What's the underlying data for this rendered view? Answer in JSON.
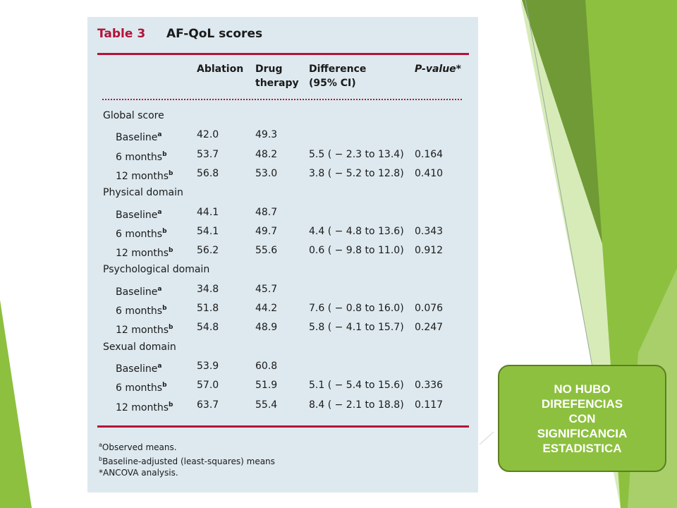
{
  "table": {
    "title": "Table 3",
    "subtitle": "AF-QoL scores",
    "headers": {
      "ablation": "Ablation",
      "drug_line1": "Drug",
      "drug_line2": "therapy",
      "difference_line1": "Difference",
      "difference_line2": "(95% CI)",
      "pvalue": "P-value*"
    },
    "sections": [
      {
        "label": "Global score",
        "rows": [
          {
            "label": "Baseline",
            "sup": "a",
            "ablation": "42.0",
            "drug": "49.3",
            "difference": "",
            "p": ""
          },
          {
            "label": "6 months",
            "sup": "b",
            "ablation": "53.7",
            "drug": "48.2",
            "difference": "5.5 ( − 2.3 to 13.4)",
            "p": "0.164"
          },
          {
            "label": "12 months",
            "sup": "b",
            "ablation": "56.8",
            "drug": "53.0",
            "difference": "3.8 ( − 5.2 to 12.8)",
            "p": "0.410"
          }
        ]
      },
      {
        "label": "Physical domain",
        "rows": [
          {
            "label": "Baseline",
            "sup": "a",
            "ablation": "44.1",
            "drug": "48.7",
            "difference": "",
            "p": ""
          },
          {
            "label": "6 months",
            "sup": "b",
            "ablation": "54.1",
            "drug": "49.7",
            "difference": "4.4 ( − 4.8 to 13.6)",
            "p": "0.343"
          },
          {
            "label": "12 months",
            "sup": "b",
            "ablation": "56.2",
            "drug": "55.6",
            "difference": "0.6 ( − 9.8 to 11.0)",
            "p": "0.912"
          }
        ]
      },
      {
        "label": "Psychological domain",
        "rows": [
          {
            "label": "Baseline",
            "sup": "a",
            "ablation": "34.8",
            "drug": "45.7",
            "difference": "",
            "p": ""
          },
          {
            "label": "6 months",
            "sup": "b",
            "ablation": "51.8",
            "drug": "44.2",
            "difference": "7.6 ( − 0.8 to 16.0)",
            "p": "0.076"
          },
          {
            "label": "12 months",
            "sup": "b",
            "ablation": "54.8",
            "drug": "48.9",
            "difference": "5.8 ( − 4.1 to 15.7)",
            "p": "0.247"
          }
        ]
      },
      {
        "label": "Sexual domain",
        "rows": [
          {
            "label": "Baseline",
            "sup": "a",
            "ablation": "53.9",
            "drug": "60.8",
            "difference": "",
            "p": ""
          },
          {
            "label": "6 months",
            "sup": "b",
            "ablation": "57.0",
            "drug": "51.9",
            "difference": "5.1 ( − 5.4 to 15.6)",
            "p": "0.336"
          },
          {
            "label": "12 months",
            "sup": "b",
            "ablation": "63.7",
            "drug": "55.4",
            "difference": "8.4 ( − 2.1 to 18.8)",
            "p": "0.117"
          }
        ]
      }
    ],
    "footnotes": [
      {
        "sup": "a",
        "text": "Observed means."
      },
      {
        "sup": "b",
        "text": "Baseline-adjusted (least-squares) means"
      },
      {
        "sup": "",
        "text": "*ANCOVA analysis."
      }
    ]
  },
  "callout": {
    "lines": [
      "NO HUBO",
      "DIREFENCIAS",
      "CON",
      "SIGNIFICANCIA",
      "ESTADISTICA"
    ]
  },
  "colors": {
    "accent_red": "#b4123a",
    "table_background": "#dde9ef",
    "callout_green": "#8dc03f",
    "decor_green": "#8dc03f"
  }
}
